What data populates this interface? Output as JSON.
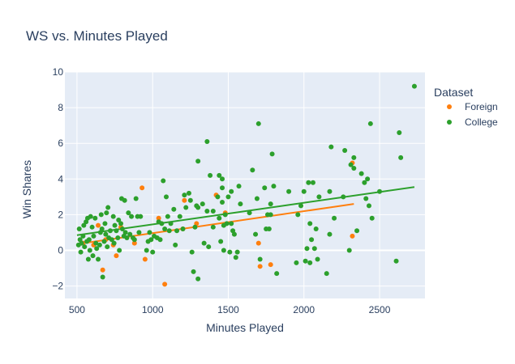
{
  "chart_data": {
    "type": "scatter",
    "title": "WS vs. Minutes Played",
    "xlabel": "Minutes Played",
    "ylabel": "Win Shares",
    "xlim": [
      420,
      2800
    ],
    "ylim": [
      -2.7,
      10
    ],
    "xticks": [
      500,
      1000,
      1500,
      2000,
      2500
    ],
    "yticks": [
      -2,
      0,
      2,
      4,
      6,
      8,
      10
    ],
    "grid": true,
    "legend": {
      "title": "Dataset",
      "placement": "top-right"
    },
    "series": [
      {
        "name": "Foreign",
        "color": "#ff7f0e",
        "points": [
          [
            540,
            0.4
          ],
          [
            610,
            0.3
          ],
          [
            640,
            1.4
          ],
          [
            670,
            -1.1
          ],
          [
            690,
            0.6
          ],
          [
            740,
            0.3
          ],
          [
            760,
            -0.3
          ],
          [
            790,
            1.3
          ],
          [
            880,
            0.4
          ],
          [
            930,
            3.5
          ],
          [
            950,
            -0.5
          ],
          [
            1040,
            1.8
          ],
          [
            1080,
            -1.9
          ],
          [
            1200,
            1.2
          ],
          [
            1210,
            2.8
          ],
          [
            1290,
            1.5
          ],
          [
            1420,
            3.1
          ],
          [
            1480,
            2.1
          ],
          [
            1700,
            0.4
          ],
          [
            1710,
            -0.9
          ],
          [
            1780,
            -0.8
          ],
          [
            2320,
            0.8
          ],
          [
            2320,
            4.9
          ]
        ],
        "trend": [
          [
            500,
            0.35
          ],
          [
            2330,
            2.6
          ]
        ]
      },
      {
        "name": "College",
        "color": "#2ca02c",
        "points": [
          [
            510,
            0.3
          ],
          [
            515,
            1.2
          ],
          [
            520,
            0.6
          ],
          [
            525,
            -0.1
          ],
          [
            530,
            0.4
          ],
          [
            540,
            0.8
          ],
          [
            545,
            1.4
          ],
          [
            550,
            0.2
          ],
          [
            560,
            1.6
          ],
          [
            565,
            0.5
          ],
          [
            570,
            1.8
          ],
          [
            575,
            -0.5
          ],
          [
            580,
            0.6
          ],
          [
            585,
            0.0
          ],
          [
            590,
            1.9
          ],
          [
            600,
            1.3
          ],
          [
            605,
            -0.3
          ],
          [
            610,
            0.8
          ],
          [
            620,
            1.8
          ],
          [
            625,
            0.4
          ],
          [
            630,
            0.1
          ],
          [
            640,
            -0.5
          ],
          [
            650,
            0.3
          ],
          [
            655,
            1.0
          ],
          [
            660,
            2.0
          ],
          [
            665,
            1.2
          ],
          [
            670,
            -1.5
          ],
          [
            680,
            0.5
          ],
          [
            685,
            1.5
          ],
          [
            690,
            0.9
          ],
          [
            695,
            2.1
          ],
          [
            700,
            0.2
          ],
          [
            705,
            2.4
          ],
          [
            710,
            0.7
          ],
          [
            720,
            1.1
          ],
          [
            730,
            0.6
          ],
          [
            740,
            1.9
          ],
          [
            745,
            0.4
          ],
          [
            750,
            1.4
          ],
          [
            760,
            1.1
          ],
          [
            770,
            0.7
          ],
          [
            775,
            1.7
          ],
          [
            780,
            0.0
          ],
          [
            790,
            1.5
          ],
          [
            795,
            2.9
          ],
          [
            800,
            1.2
          ],
          [
            810,
            0.8
          ],
          [
            815,
            2.8
          ],
          [
            820,
            1.0
          ],
          [
            830,
            0.7
          ],
          [
            840,
            2.1
          ],
          [
            850,
            0.9
          ],
          [
            860,
            1.9
          ],
          [
            870,
            0.7
          ],
          [
            880,
            0.6
          ],
          [
            890,
            2.9
          ],
          [
            900,
            1.9
          ],
          [
            910,
            1.0
          ],
          [
            920,
            1.9
          ],
          [
            960,
            0.0
          ],
          [
            970,
            0.5
          ],
          [
            980,
            1.0
          ],
          [
            990,
            0.6
          ],
          [
            1000,
            -0.1
          ],
          [
            1010,
            0.8
          ],
          [
            1030,
            0.7
          ],
          [
            1040,
            1.6
          ],
          [
            1050,
            0.6
          ],
          [
            1060,
            1.5
          ],
          [
            1070,
            3.9
          ],
          [
            1080,
            1.2
          ],
          [
            1090,
            3.0
          ],
          [
            1100,
            1.9
          ],
          [
            1110,
            1.1
          ],
          [
            1120,
            1.5
          ],
          [
            1140,
            2.3
          ],
          [
            1150,
            0.3
          ],
          [
            1160,
            1.1
          ],
          [
            1180,
            1.9
          ],
          [
            1200,
            1.2
          ],
          [
            1210,
            3.1
          ],
          [
            1220,
            2.4
          ],
          [
            1240,
            3.2
          ],
          [
            1250,
            2.8
          ],
          [
            1260,
            -0.1
          ],
          [
            1270,
            -1.2
          ],
          [
            1280,
            1.3
          ],
          [
            1290,
            2.5
          ],
          [
            1300,
            2.4
          ],
          [
            1300,
            5.0
          ],
          [
            1300,
            -1.6
          ],
          [
            1330,
            2.6
          ],
          [
            1340,
            0.4
          ],
          [
            1360,
            2.2
          ],
          [
            1360,
            6.1
          ],
          [
            1370,
            0.2
          ],
          [
            1380,
            4.2
          ],
          [
            1400,
            1.3
          ],
          [
            1400,
            2.2
          ],
          [
            1430,
            3.0
          ],
          [
            1440,
            4.2
          ],
          [
            1440,
            1.8
          ],
          [
            1450,
            0.5
          ],
          [
            1460,
            3.5
          ],
          [
            1460,
            4.0
          ],
          [
            1460,
            2.7
          ],
          [
            1470,
            1.4
          ],
          [
            1470,
            0.0
          ],
          [
            1480,
            2.0
          ],
          [
            1490,
            1.5
          ],
          [
            1500,
            3.0
          ],
          [
            1510,
            -0.1
          ],
          [
            1520,
            3.3
          ],
          [
            1520,
            1.5
          ],
          [
            1530,
            1.1
          ],
          [
            1540,
            0.9
          ],
          [
            1550,
            -0.4
          ],
          [
            1560,
            -0.1
          ],
          [
            1570,
            3.6
          ],
          [
            1580,
            2.6
          ],
          [
            1640,
            2.1
          ],
          [
            1660,
            4.5
          ],
          [
            1680,
            0.9
          ],
          [
            1690,
            2.9
          ],
          [
            1700,
            7.1
          ],
          [
            1710,
            -0.5
          ],
          [
            1740,
            3.5
          ],
          [
            1750,
            1.2
          ],
          [
            1760,
            2.0
          ],
          [
            1770,
            1.2
          ],
          [
            1780,
            2.6
          ],
          [
            1780,
            2.0
          ],
          [
            1790,
            5.4
          ],
          [
            1800,
            3.6
          ],
          [
            1820,
            -1.3
          ],
          [
            1900,
            3.3
          ],
          [
            1950,
            -0.7
          ],
          [
            1960,
            2.0
          ],
          [
            1980,
            2.5
          ],
          [
            2000,
            3.3
          ],
          [
            2010,
            -0.6
          ],
          [
            2020,
            0.1
          ],
          [
            2030,
            3.8
          ],
          [
            2040,
            1.5
          ],
          [
            2040,
            -0.7
          ],
          [
            2050,
            0.6
          ],
          [
            2060,
            3.8
          ],
          [
            2070,
            0.1
          ],
          [
            2080,
            1.2
          ],
          [
            2090,
            -0.5
          ],
          [
            2100,
            3.0
          ],
          [
            2150,
            -1.3
          ],
          [
            2170,
            0.9
          ],
          [
            2170,
            3.3
          ],
          [
            2180,
            5.8
          ],
          [
            2200,
            1.8
          ],
          [
            2260,
            3.0
          ],
          [
            2270,
            5.6
          ],
          [
            2300,
            0.0
          ],
          [
            2310,
            4.8
          ],
          [
            2330,
            5.2
          ],
          [
            2330,
            4.6
          ],
          [
            2350,
            1.1
          ],
          [
            2380,
            4.3
          ],
          [
            2400,
            3.8
          ],
          [
            2410,
            2.9
          ],
          [
            2420,
            4.0
          ],
          [
            2430,
            2.5
          ],
          [
            2440,
            7.1
          ],
          [
            2450,
            1.8
          ],
          [
            2500,
            3.3
          ],
          [
            2610,
            -0.6
          ],
          [
            2640,
            5.2
          ],
          [
            2630,
            6.6
          ],
          [
            2730,
            9.2
          ]
        ],
        "trend": [
          [
            500,
            0.85
          ],
          [
            2730,
            3.55
          ]
        ]
      }
    ]
  }
}
